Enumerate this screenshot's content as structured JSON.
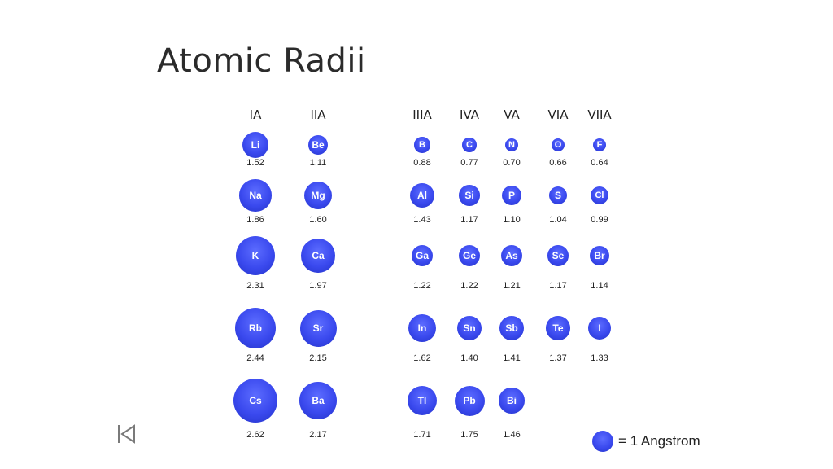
{
  "title": "Atomic Radii",
  "groups": [
    "IA",
    "IIA",
    "IIIA",
    "IVA",
    "VA",
    "VIA",
    "VIIA"
  ],
  "atom_color": "#3a49ee",
  "elements": [
    {
      "symbol": "Li",
      "radius": "1.52",
      "group": 0,
      "row": 0
    },
    {
      "symbol": "Be",
      "radius": "1.11",
      "group": 1,
      "row": 0
    },
    {
      "symbol": "B",
      "radius": "0.88",
      "group": 2,
      "row": 0
    },
    {
      "symbol": "C",
      "radius": "0.77",
      "group": 3,
      "row": 0
    },
    {
      "symbol": "N",
      "radius": "0.70",
      "group": 4,
      "row": 0
    },
    {
      "symbol": "O",
      "radius": "0.66",
      "group": 5,
      "row": 0
    },
    {
      "symbol": "F",
      "radius": "0.64",
      "group": 6,
      "row": 0
    },
    {
      "symbol": "Na",
      "radius": "1.86",
      "group": 0,
      "row": 1
    },
    {
      "symbol": "Mg",
      "radius": "1.60",
      "group": 1,
      "row": 1
    },
    {
      "symbol": "Al",
      "radius": "1.43",
      "group": 2,
      "row": 1
    },
    {
      "symbol": "Si",
      "radius": "1.17",
      "group": 3,
      "row": 1
    },
    {
      "symbol": "P",
      "radius": "1.10",
      "group": 4,
      "row": 1
    },
    {
      "symbol": "S",
      "radius": "1.04",
      "group": 5,
      "row": 1
    },
    {
      "symbol": "Cl",
      "radius": "0.99",
      "group": 6,
      "row": 1
    },
    {
      "symbol": "K",
      "radius": "2.31",
      "group": 0,
      "row": 2
    },
    {
      "symbol": "Ca",
      "radius": "1.97",
      "group": 1,
      "row": 2
    },
    {
      "symbol": "Ga",
      "radius": "1.22",
      "group": 2,
      "row": 2
    },
    {
      "symbol": "Ge",
      "radius": "1.22",
      "group": 3,
      "row": 2
    },
    {
      "symbol": "As",
      "radius": "1.21",
      "group": 4,
      "row": 2
    },
    {
      "symbol": "Se",
      "radius": "1.17",
      "group": 5,
      "row": 2
    },
    {
      "symbol": "Br",
      "radius": "1.14",
      "group": 6,
      "row": 2
    },
    {
      "symbol": "Rb",
      "radius": "2.44",
      "group": 0,
      "row": 3
    },
    {
      "symbol": "Sr",
      "radius": "2.15",
      "group": 1,
      "row": 3
    },
    {
      "symbol": "In",
      "radius": "1.62",
      "group": 2,
      "row": 3
    },
    {
      "symbol": "Sn",
      "radius": "1.40",
      "group": 3,
      "row": 3
    },
    {
      "symbol": "Sb",
      "radius": "1.41",
      "group": 4,
      "row": 3
    },
    {
      "symbol": "Te",
      "radius": "1.37",
      "group": 5,
      "row": 3
    },
    {
      "symbol": "I",
      "radius": "1.33",
      "group": 6,
      "row": 3
    },
    {
      "symbol": "Cs",
      "radius": "2.62",
      "group": 0,
      "row": 4
    },
    {
      "symbol": "Ba",
      "radius": "2.17",
      "group": 1,
      "row": 4
    },
    {
      "symbol": "Tl",
      "radius": "1.71",
      "group": 2,
      "row": 4
    },
    {
      "symbol": "Pb",
      "radius": "1.75",
      "group": 3,
      "row": 4
    },
    {
      "symbol": "Bi",
      "radius": "1.46",
      "group": 4,
      "row": 4
    }
  ],
  "legend": {
    "text": "= 1 Angstrom"
  },
  "nav": {
    "back_icon": "skip-back-icon"
  }
}
